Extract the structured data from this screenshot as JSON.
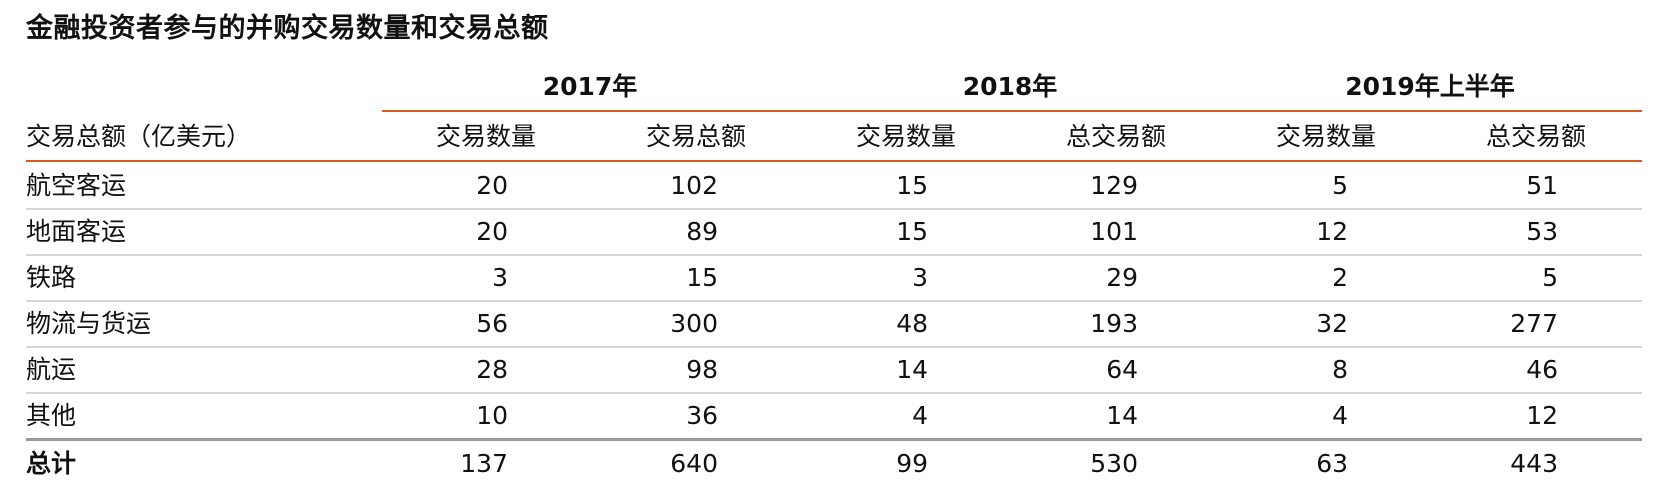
{
  "title": "金融投资者参与的并购交易数量和交易总额",
  "groups": [
    "2017年",
    "2018年",
    "2019年上半年"
  ],
  "columns": [
    "交易总额（亿美元）",
    "交易数量",
    "交易总额",
    "交易数量",
    "总交易额",
    "交易数量",
    "总交易额"
  ],
  "rows": [
    [
      "航空客运",
      "20",
      "102",
      "15",
      "129",
      "5",
      "51"
    ],
    [
      "地面客运",
      "20",
      "89",
      "15",
      "101",
      "12",
      "53"
    ],
    [
      "铁路",
      "3",
      "15",
      "3",
      "29",
      "2",
      "5"
    ],
    [
      "物流与货运",
      "56",
      "300",
      "48",
      "193",
      "32",
      "277"
    ],
    [
      "航运",
      "28",
      "98",
      "14",
      "64",
      "8",
      "46"
    ],
    [
      "其他",
      "10",
      "36",
      "4",
      "14",
      "4",
      "12"
    ]
  ],
  "total": [
    "总计",
    "137",
    "640",
    "99",
    "530",
    "63",
    "443"
  ],
  "colors": {
    "accent_rule": "#d9591f",
    "row_rule": "#d6d6d6",
    "total_rule": "#9a9a9a"
  }
}
